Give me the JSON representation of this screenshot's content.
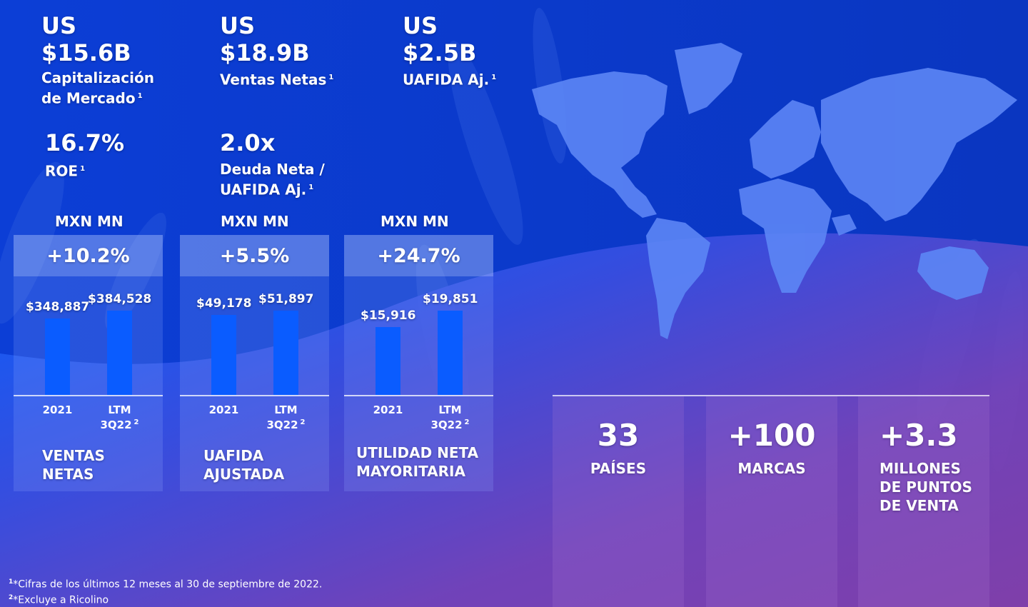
{
  "kpis": {
    "market_cap": {
      "currency": "US",
      "amount": "$15.6B",
      "label_line1": "Capitalización",
      "label_line2": "de Mercado",
      "note": "1"
    },
    "net_sales": {
      "currency": "US",
      "amount": "$18.9B",
      "label": "Ventas Netas",
      "note": "1"
    },
    "uafida": {
      "currency": "US",
      "amount": "$2.5B",
      "label": "UAFIDA Aj.",
      "note": "1"
    },
    "roe": {
      "value": "16.7%",
      "label": "ROE",
      "note": "1"
    },
    "leverage": {
      "value": "2.0x",
      "label_line1": "Deuda Neta /",
      "label_line2": "UAFIDA Aj.",
      "note": "1"
    }
  },
  "chart_data": [
    {
      "type": "bar",
      "unit_label": "MXN MN",
      "growth": "+10.2%",
      "title_line1": "VENTAS",
      "title_line2": "NETAS",
      "categories": [
        "2021",
        "LTM 3Q22"
      ],
      "tick_line1": [
        "2021",
        "LTM"
      ],
      "tick_line2": [
        "",
        "3Q22"
      ],
      "tick_note": [
        "",
        "2"
      ],
      "values": [
        348887,
        384528
      ],
      "value_labels": [
        "$348,887",
        "$384,528"
      ],
      "ylim": [
        0,
        384528
      ]
    },
    {
      "type": "bar",
      "unit_label": "MXN MN",
      "growth": "+5.5%",
      "title_line1": "UAFIDA",
      "title_line2": "AJUSTADA",
      "categories": [
        "2021",
        "LTM 3Q22"
      ],
      "tick_line1": [
        "2021",
        "LTM"
      ],
      "tick_line2": [
        "",
        "3Q22"
      ],
      "tick_note": [
        "",
        "2"
      ],
      "values": [
        49178,
        51897
      ],
      "value_labels": [
        "$49,178",
        "$51,897"
      ],
      "ylim": [
        0,
        51897
      ]
    },
    {
      "type": "bar",
      "unit_label": "MXN MN",
      "growth": "+24.7%",
      "title_line1": "UTILIDAD NETA",
      "title_line2": "MAYORITARIA",
      "categories": [
        "2021",
        "LTM 3Q22"
      ],
      "tick_line1": [
        "2021",
        "LTM"
      ],
      "tick_line2": [
        "",
        "3Q22"
      ],
      "tick_note": [
        "",
        "2"
      ],
      "values": [
        15916,
        19851
      ],
      "value_labels": [
        "$15,916",
        "$19,851"
      ],
      "ylim": [
        0,
        19851
      ]
    }
  ],
  "stats": [
    {
      "big": "33",
      "line1": "PAÍSES",
      "line2": "",
      "line3": ""
    },
    {
      "big": "+100",
      "line1": "MARCAS",
      "line2": "",
      "line3": ""
    },
    {
      "big": "+3.3",
      "line1": "MILLONES",
      "line2": "DE PUNTOS",
      "line3": "DE VENTA"
    }
  ],
  "footnotes": [
    {
      "mark": "1",
      "text": "*Cifras de los últimos 12 meses al 30 de septiembre de 2022."
    },
    {
      "mark": "2",
      "text": "*Excluye a Ricolino"
    }
  ],
  "colors": {
    "background_top": "#0a3fd0",
    "background_bottom": "#7a3fb0",
    "bar": "#0a5cff",
    "map_land": "#4d7cf5"
  },
  "icons": [
    "world-map-graphic",
    "wheat-background"
  ]
}
